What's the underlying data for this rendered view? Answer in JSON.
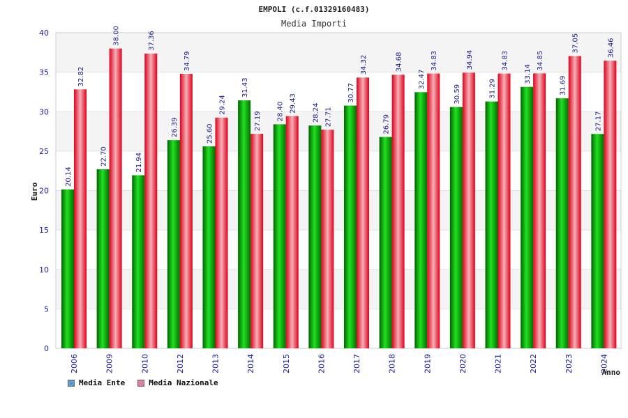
{
  "chart_data": {
    "type": "bar",
    "title": "EMPOLI (c.f.01329160483)",
    "subtitle": "Media Importi",
    "xlabel": "Anno",
    "ylabel": "Euro",
    "ylim": [
      0,
      40
    ],
    "yticks": [
      0,
      5,
      10,
      15,
      20,
      25,
      30,
      35,
      40
    ],
    "ytick_labels": [
      "0",
      "5",
      "10",
      "15",
      "20",
      "25",
      "30",
      "35",
      "40"
    ],
    "categories": [
      "2006",
      "2009",
      "2010",
      "2012",
      "2013",
      "2014",
      "2015",
      "2016",
      "2017",
      "2018",
      "2019",
      "2020",
      "2021",
      "2022",
      "2023",
      "2024"
    ],
    "series": [
      {
        "name": "Media Ente",
        "color": "#00a000",
        "legend_color": "#5b9bd5",
        "values": [
          20.14,
          22.7,
          21.94,
          26.39,
          25.6,
          31.43,
          28.4,
          28.24,
          30.77,
          26.79,
          32.47,
          30.59,
          31.29,
          33.14,
          31.69,
          27.17
        ],
        "labels": [
          "20.14",
          "22.70",
          "21.94",
          "26.39",
          "25.60",
          "31.43",
          "28.40",
          "28.24",
          "30.77",
          "26.79",
          "32.47",
          "30.59",
          "31.29",
          "33.14",
          "31.69",
          "27.17"
        ]
      },
      {
        "name": "Media Nazionale",
        "color": "#e8001c",
        "legend_color": "#e07aa0",
        "values": [
          32.82,
          38.0,
          37.36,
          34.79,
          29.24,
          27.19,
          29.43,
          27.71,
          34.32,
          34.68,
          34.83,
          34.94,
          34.83,
          34.85,
          37.05,
          36.46
        ],
        "labels": [
          "32.82",
          "38.00",
          "37.36",
          "34.79",
          "29.24",
          "27.19",
          "29.43",
          "27.71",
          "34.32",
          "34.68",
          "34.83",
          "34.94",
          "34.83",
          "34.85",
          "37.05",
          "36.46"
        ]
      }
    ],
    "grid": true,
    "legend_position": "bottom-left"
  }
}
